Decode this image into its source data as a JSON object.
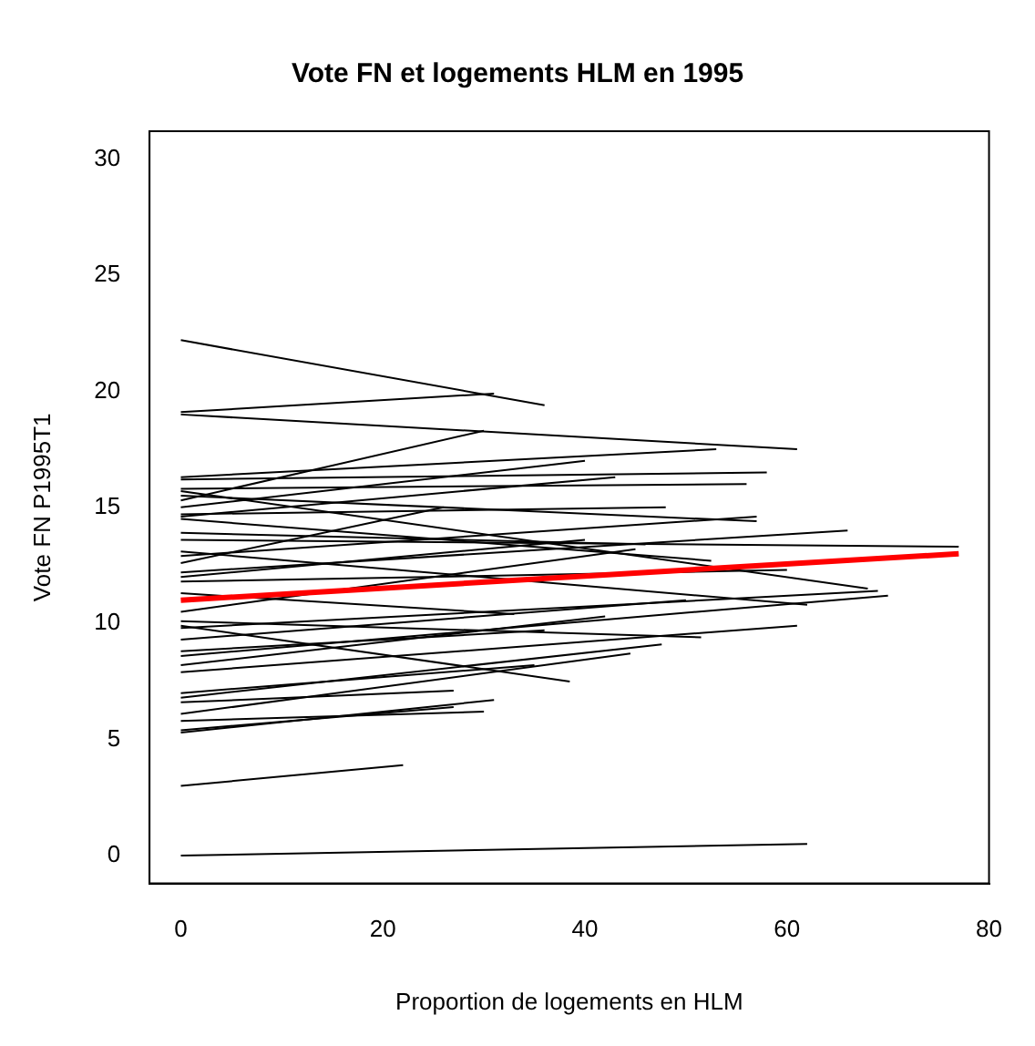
{
  "chart_data": {
    "type": "line",
    "title": "Vote FN et logements HLM en 1995",
    "xlabel": "Proportion de logements en HLM",
    "ylabel": "Vote FN P1995T1",
    "xlim": [
      -3.1,
      80
    ],
    "xticks": [
      0,
      20,
      40,
      60,
      80
    ],
    "ylim": [
      -1.2,
      31.2
    ],
    "yticks": [
      0,
      5,
      10,
      15,
      20,
      25,
      30
    ],
    "grid": false,
    "legend": false,
    "marker": "none",
    "line_style": "solid",
    "series": [
      {
        "color": "#000000",
        "x": [
          0,
          62
        ],
        "values": [
          0,
          0.5
        ]
      },
      {
        "color": "#000000",
        "x": [
          0,
          22
        ],
        "values": [
          3.0,
          3.9
        ]
      },
      {
        "color": "#000000",
        "x": [
          0,
          36
        ],
        "values": [
          22.2,
          19.4
        ]
      },
      {
        "color": "#000000",
        "x": [
          0,
          31
        ],
        "values": [
          19.1,
          19.9
        ]
      },
      {
        "color": "#000000",
        "x": [
          0,
          61
        ],
        "values": [
          19.0,
          17.5
        ]
      },
      {
        "color": "#000000",
        "x": [
          0,
          30
        ],
        "values": [
          15.3,
          18.3
        ]
      },
      {
        "color": "#000000",
        "x": [
          0,
          53
        ],
        "values": [
          16.3,
          17.5
        ]
      },
      {
        "color": "#000000",
        "x": [
          0,
          58
        ],
        "values": [
          16.2,
          16.5
        ]
      },
      {
        "color": "#000000",
        "x": [
          0,
          56
        ],
        "values": [
          15.8,
          16.0
        ]
      },
      {
        "color": "#000000",
        "x": [
          0,
          43
        ],
        "values": [
          14.6,
          16.3
        ]
      },
      {
        "color": "#000000",
        "x": [
          0,
          57
        ],
        "values": [
          12.9,
          14.6
        ]
      },
      {
        "color": "#000000",
        "x": [
          0,
          57
        ],
        "values": [
          15.5,
          14.4
        ]
      },
      {
        "color": "#000000",
        "x": [
          0,
          66
        ],
        "values": [
          12.2,
          14.0
        ]
      },
      {
        "color": "#000000",
        "x": [
          0,
          48
        ],
        "values": [
          14.7,
          15.0
        ]
      },
      {
        "color": "#000000",
        "x": [
          0,
          77
        ],
        "values": [
          13.6,
          13.3
        ]
      },
      {
        "color": "#000000",
        "x": [
          0,
          52.5
        ],
        "values": [
          14.5,
          12.7
        ]
      },
      {
        "color": "#000000",
        "x": [
          0,
          60
        ],
        "values": [
          11.8,
          12.3
        ]
      },
      {
        "color": "#000000",
        "x": [
          0,
          68
        ],
        "values": [
          15.7,
          11.5
        ]
      },
      {
        "color": "#000000",
        "x": [
          0,
          69
        ],
        "values": [
          9.8,
          11.4
        ]
      },
      {
        "color": "#000000",
        "x": [
          0,
          70
        ],
        "values": [
          8.6,
          11.2
        ]
      },
      {
        "color": "#000000",
        "x": [
          0,
          62
        ],
        "values": [
          13.1,
          10.8
        ]
      },
      {
        "color": "#000000",
        "x": [
          0,
          61
        ],
        "values": [
          7.9,
          9.9
        ]
      },
      {
        "color": "#000000",
        "x": [
          0,
          51.5
        ],
        "values": [
          10.1,
          9.4
        ]
      },
      {
        "color": "#000000",
        "x": [
          0,
          47.6
        ],
        "values": [
          6.8,
          9.1
        ]
      },
      {
        "color": "#000000",
        "x": [
          0,
          44.5
        ],
        "values": [
          6.1,
          8.7
        ]
      },
      {
        "color": "#000000",
        "x": [
          0,
          38.5
        ],
        "values": [
          9.9,
          7.5
        ]
      },
      {
        "color": "#000000",
        "x": [
          0,
          31
        ],
        "values": [
          5.3,
          6.7
        ]
      },
      {
        "color": "#000000",
        "x": [
          0,
          27
        ],
        "values": [
          5.4,
          6.4
        ]
      },
      {
        "color": "#000000",
        "x": [
          0,
          27
        ],
        "values": [
          6.6,
          7.1
        ]
      },
      {
        "color": "#000000",
        "x": [
          0,
          26
        ],
        "values": [
          12.6,
          15.0
        ]
      },
      {
        "color": "#000000",
        "x": [
          0,
          42
        ],
        "values": [
          8.2,
          10.3
        ]
      },
      {
        "color": "#000000",
        "x": [
          0,
          45
        ],
        "values": [
          10.5,
          13.2
        ]
      },
      {
        "color": "#000000",
        "x": [
          0,
          35
        ],
        "values": [
          7.0,
          8.2
        ]
      },
      {
        "color": "#000000",
        "x": [
          0,
          40
        ],
        "values": [
          12.0,
          13.6
        ]
      },
      {
        "color": "#000000",
        "x": [
          0,
          30
        ],
        "values": [
          5.8,
          6.2
        ]
      },
      {
        "color": "#000000",
        "x": [
          0,
          50
        ],
        "values": [
          9.3,
          11.0
        ]
      },
      {
        "color": "#000000",
        "x": [
          0,
          46
        ],
        "values": [
          13.9,
          13.4
        ]
      },
      {
        "color": "#000000",
        "x": [
          0,
          33
        ],
        "values": [
          11.3,
          10.4
        ]
      },
      {
        "color": "#000000",
        "x": [
          0,
          40
        ],
        "values": [
          15.0,
          17.0
        ]
      },
      {
        "color": "#000000",
        "x": [
          0,
          36
        ],
        "values": [
          8.8,
          9.7
        ]
      },
      {
        "color": "#ff0000",
        "x": [
          0,
          77
        ],
        "values": [
          11.0,
          13.0
        ]
      }
    ]
  }
}
